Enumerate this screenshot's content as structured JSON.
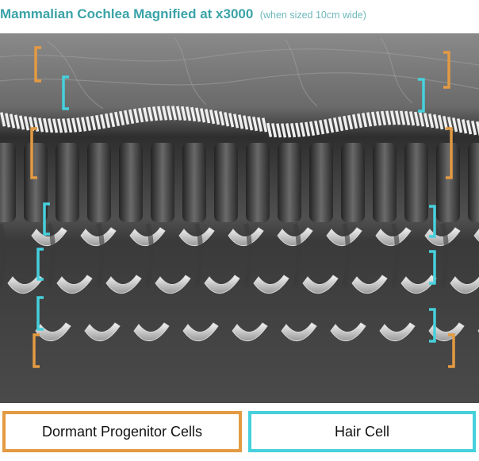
{
  "title": {
    "main": "Mammalian Cochlea Magnified at x3000",
    "sub": "(when sized 10cm wide)"
  },
  "legend": {
    "dormant_progenitor": "Dormant Progenitor Cells",
    "hair_cell": "Hair Cell"
  },
  "colors": {
    "title": "#3aa3a8",
    "dormant_progenitor": "#e39a42",
    "hair_cell": "#46d0dc"
  }
}
